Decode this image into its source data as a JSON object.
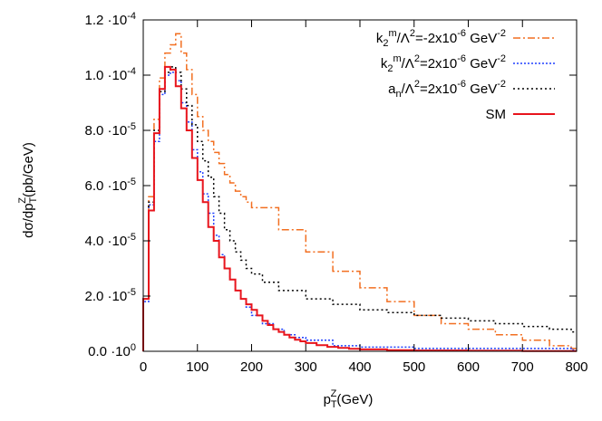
{
  "chart_data": {
    "type": "line",
    "style": "histogram-steps",
    "xlabel_base": "p",
    "xlabel_sub": "T",
    "xlabel_sup": "Z",
    "xlabel_unit": "(GeV)",
    "ylabel_main": "dσ/dp",
    "ylabel_sub": "T",
    "ylabel_sup": "Z",
    "ylabel_unit": "(pb/GeV)",
    "xlim": [
      0,
      800
    ],
    "ylim": [
      0,
      0.00012
    ],
    "grid": false,
    "legend_position": "top-right",
    "x_ticks": [
      {
        "value": 0,
        "label": "0"
      },
      {
        "value": 100,
        "label": "100"
      },
      {
        "value": 200,
        "label": "200"
      },
      {
        "value": 300,
        "label": "300"
      },
      {
        "value": 400,
        "label": "400"
      },
      {
        "value": 500,
        "label": "500"
      },
      {
        "value": 600,
        "label": "600"
      },
      {
        "value": 700,
        "label": "700"
      },
      {
        "value": 800,
        "label": "800"
      }
    ],
    "y_ticks": [
      {
        "value": 0,
        "mantissa": "0.0 ·10",
        "exp": "0"
      },
      {
        "value": 2e-05,
        "mantissa": "2.0 ·10",
        "exp": "-5"
      },
      {
        "value": 4e-05,
        "mantissa": "4.0 ·10",
        "exp": "-5"
      },
      {
        "value": 6e-05,
        "mantissa": "6.0 ·10",
        "exp": "-5"
      },
      {
        "value": 8e-05,
        "mantissa": "8.0 ·10",
        "exp": "-5"
      },
      {
        "value": 0.0001,
        "mantissa": "1.0 ·10",
        "exp": "-4"
      },
      {
        "value": 0.00012,
        "mantissa": "1.2 ·10",
        "exp": "-4"
      }
    ],
    "bin_width": 10,
    "series": [
      {
        "legend": [
          {
            "t": "k"
          },
          {
            "t": "2",
            "sub": true
          },
          {
            "t": "m",
            "sup": true
          },
          {
            "t": "/Λ"
          },
          {
            "t": "2",
            "sup": true
          },
          {
            "t": "=-2x10"
          },
          {
            "t": "-6",
            "sup": true
          },
          {
            "t": " GeV"
          },
          {
            "t": "-2",
            "sup": true
          }
        ],
        "color": "#f26f21",
        "dash": "8,3,2,3",
        "width": 1.5,
        "x": [
          0,
          10,
          20,
          30,
          40,
          50,
          60,
          70,
          80,
          90,
          100,
          110,
          120,
          130,
          140,
          150,
          160,
          170,
          180,
          190,
          200,
          250,
          300,
          350,
          400,
          450,
          500,
          550,
          600,
          650,
          700,
          750,
          790
        ],
        "values": [
          1.9e-05,
          5.6e-05,
          8.4e-05,
          9.9e-05,
          0.000108,
          0.000111,
          0.000115,
          0.000108,
          0.000102,
          9.3e-05,
          8.5e-05,
          8e-05,
          7.6e-05,
          7.2e-05,
          6.8e-05,
          6.4e-05,
          6.1e-05,
          5.8e-05,
          5.6e-05,
          5.4e-05,
          5.2e-05,
          4.4e-05,
          3.6e-05,
          2.9e-05,
          2.3e-05,
          1.8e-05,
          1.3e-05,
          1e-05,
          8e-06,
          6e-06,
          4e-06,
          2e-06,
          1e-06
        ]
      },
      {
        "legend": [
          {
            "t": "k"
          },
          {
            "t": "2",
            "sub": true
          },
          {
            "t": "m",
            "sup": true
          },
          {
            "t": "/Λ"
          },
          {
            "t": "2",
            "sup": true
          },
          {
            "t": "=2x10"
          },
          {
            "t": "-6",
            "sup": true
          },
          {
            "t": " GeV"
          },
          {
            "t": "-2",
            "sup": true
          }
        ],
        "color": "#1f3fff",
        "dash": "2,2",
        "width": 1.5,
        "x": [
          0,
          10,
          20,
          30,
          40,
          50,
          60,
          70,
          80,
          90,
          100,
          110,
          120,
          130,
          140,
          150,
          160,
          170,
          180,
          190,
          200,
          220,
          240,
          260,
          280,
          300,
          350,
          400,
          500,
          600,
          700,
          790
        ],
        "values": [
          1.8e-05,
          5.3e-05,
          7.6e-05,
          9.3e-05,
          0.0001,
          0.000101,
          9.8e-05,
          9e-05,
          8.3e-05,
          7.3e-05,
          6.5e-05,
          5.7e-05,
          5e-05,
          4.2e-05,
          3.5e-05,
          3e-05,
          2.6e-05,
          2.2e-05,
          1.9e-05,
          1.6e-05,
          1.3e-05,
          1e-05,
          8e-06,
          6e-06,
          5e-06,
          4e-06,
          2e-06,
          1.5e-06,
          1e-06,
          1e-06,
          1e-06,
          5e-07
        ]
      },
      {
        "legend": [
          {
            "t": "a"
          },
          {
            "t": "n",
            "sub": true
          },
          {
            "t": "/Λ"
          },
          {
            "t": "2",
            "sup": true
          },
          {
            "t": "=2x10"
          },
          {
            "t": "-6",
            "sup": true
          },
          {
            "t": " GeV"
          },
          {
            "t": "-2",
            "sup": true
          }
        ],
        "color": "#000000",
        "dash": "2,3",
        "width": 1.5,
        "x": [
          0,
          10,
          20,
          30,
          40,
          50,
          60,
          70,
          80,
          90,
          100,
          110,
          120,
          130,
          140,
          150,
          160,
          170,
          180,
          190,
          200,
          220,
          250,
          300,
          350,
          400,
          450,
          500,
          550,
          600,
          650,
          700,
          750,
          790
        ],
        "values": [
          1.9e-05,
          5.4e-05,
          8e-05,
          9.4e-05,
          0.000101,
          0.000103,
          0.000101,
          9.5e-05,
          8.9e-05,
          8.2e-05,
          7.6e-05,
          6.9e-05,
          6.3e-05,
          5.6e-05,
          5e-05,
          4.4e-05,
          4e-05,
          3.6e-05,
          3.3e-05,
          3e-05,
          2.8e-05,
          2.5e-05,
          2.2e-05,
          1.9e-05,
          1.7e-05,
          1.5e-05,
          1.4e-05,
          1.3e-05,
          1.2e-05,
          1.1e-05,
          1e-05,
          9e-06,
          8e-06,
          7e-06
        ]
      },
      {
        "legend": [
          {
            "t": "SM"
          }
        ],
        "color": "#e8141c",
        "dash": "",
        "width": 2,
        "x": [
          0,
          10,
          20,
          30,
          40,
          50,
          60,
          70,
          80,
          90,
          100,
          110,
          120,
          130,
          140,
          150,
          160,
          170,
          180,
          190,
          200,
          210,
          220,
          230,
          240,
          250,
          260,
          270,
          280,
          290,
          300,
          320,
          340,
          360,
          380,
          400,
          450,
          500,
          600,
          700,
          790
        ],
        "values": [
          1.9e-05,
          5.1e-05,
          7.9e-05,
          9.5e-05,
          0.000103,
          0.000102,
          9.6e-05,
          8.8e-05,
          8e-05,
          7e-05,
          6.2e-05,
          5.4e-05,
          4.5e-05,
          4e-05,
          3.4e-05,
          3e-05,
          2.6e-05,
          2.2e-05,
          1.9e-05,
          1.7e-05,
          1.5e-05,
          1.3e-05,
          1.1e-05,
          9.5e-06,
          8e-06,
          7e-06,
          6e-06,
          5e-06,
          4.2e-06,
          3.6e-06,
          3e-06,
          2.2e-06,
          1.6e-06,
          1.2e-06,
          9e-07,
          7e-07,
          4e-07,
          3e-07,
          2e-07,
          1e-07,
          1e-07
        ]
      }
    ]
  }
}
